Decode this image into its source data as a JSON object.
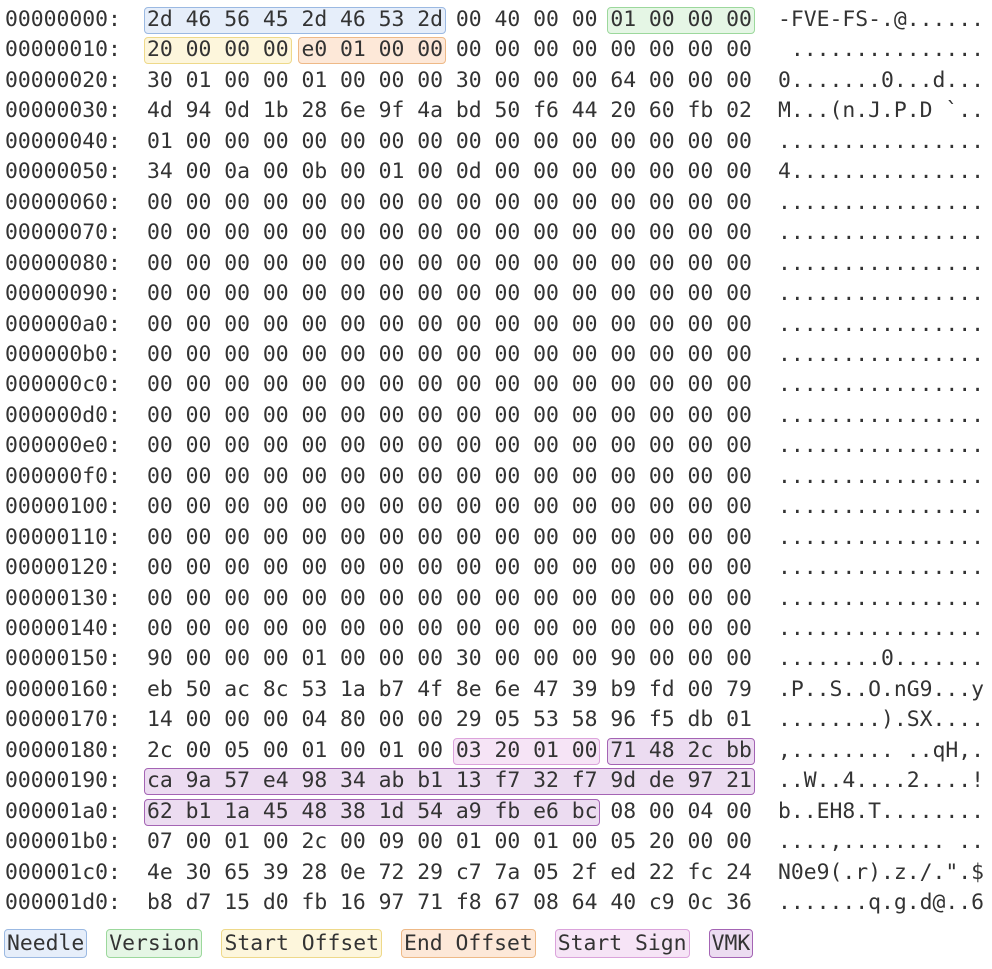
{
  "table": {
    "rows": [
      {
        "offset": "00000000:",
        "bytes": [
          "2d",
          "46",
          "56",
          "45",
          "2d",
          "46",
          "53",
          "2d",
          "00",
          "40",
          "00",
          "00",
          "01",
          "00",
          "00",
          "00"
        ],
        "ascii": "-FVE-FS-.@......"
      },
      {
        "offset": "00000010:",
        "bytes": [
          "20",
          "00",
          "00",
          "00",
          "e0",
          "01",
          "00",
          "00",
          "00",
          "00",
          "00",
          "00",
          "00",
          "00",
          "00",
          "00"
        ],
        "ascii": " ..............."
      },
      {
        "offset": "00000020:",
        "bytes": [
          "30",
          "01",
          "00",
          "00",
          "01",
          "00",
          "00",
          "00",
          "30",
          "00",
          "00",
          "00",
          "64",
          "00",
          "00",
          "00"
        ],
        "ascii": "0.......0...d..."
      },
      {
        "offset": "00000030:",
        "bytes": [
          "4d",
          "94",
          "0d",
          "1b",
          "28",
          "6e",
          "9f",
          "4a",
          "bd",
          "50",
          "f6",
          "44",
          "20",
          "60",
          "fb",
          "02"
        ],
        "ascii": "M...(n.J.P.D `.."
      },
      {
        "offset": "00000040:",
        "bytes": [
          "01",
          "00",
          "00",
          "00",
          "00",
          "00",
          "00",
          "00",
          "00",
          "00",
          "00",
          "00",
          "00",
          "00",
          "00",
          "00"
        ],
        "ascii": "................"
      },
      {
        "offset": "00000050:",
        "bytes": [
          "34",
          "00",
          "0a",
          "00",
          "0b",
          "00",
          "01",
          "00",
          "0d",
          "00",
          "00",
          "00",
          "00",
          "00",
          "00",
          "00"
        ],
        "ascii": "4..............."
      },
      {
        "offset": "00000060:",
        "bytes": [
          "00",
          "00",
          "00",
          "00",
          "00",
          "00",
          "00",
          "00",
          "00",
          "00",
          "00",
          "00",
          "00",
          "00",
          "00",
          "00"
        ],
        "ascii": "................"
      },
      {
        "offset": "00000070:",
        "bytes": [
          "00",
          "00",
          "00",
          "00",
          "00",
          "00",
          "00",
          "00",
          "00",
          "00",
          "00",
          "00",
          "00",
          "00",
          "00",
          "00"
        ],
        "ascii": "................"
      },
      {
        "offset": "00000080:",
        "bytes": [
          "00",
          "00",
          "00",
          "00",
          "00",
          "00",
          "00",
          "00",
          "00",
          "00",
          "00",
          "00",
          "00",
          "00",
          "00",
          "00"
        ],
        "ascii": "................"
      },
      {
        "offset": "00000090:",
        "bytes": [
          "00",
          "00",
          "00",
          "00",
          "00",
          "00",
          "00",
          "00",
          "00",
          "00",
          "00",
          "00",
          "00",
          "00",
          "00",
          "00"
        ],
        "ascii": "................"
      },
      {
        "offset": "000000a0:",
        "bytes": [
          "00",
          "00",
          "00",
          "00",
          "00",
          "00",
          "00",
          "00",
          "00",
          "00",
          "00",
          "00",
          "00",
          "00",
          "00",
          "00"
        ],
        "ascii": "................"
      },
      {
        "offset": "000000b0:",
        "bytes": [
          "00",
          "00",
          "00",
          "00",
          "00",
          "00",
          "00",
          "00",
          "00",
          "00",
          "00",
          "00",
          "00",
          "00",
          "00",
          "00"
        ],
        "ascii": "................"
      },
      {
        "offset": "000000c0:",
        "bytes": [
          "00",
          "00",
          "00",
          "00",
          "00",
          "00",
          "00",
          "00",
          "00",
          "00",
          "00",
          "00",
          "00",
          "00",
          "00",
          "00"
        ],
        "ascii": "................"
      },
      {
        "offset": "000000d0:",
        "bytes": [
          "00",
          "00",
          "00",
          "00",
          "00",
          "00",
          "00",
          "00",
          "00",
          "00",
          "00",
          "00",
          "00",
          "00",
          "00",
          "00"
        ],
        "ascii": "................"
      },
      {
        "offset": "000000e0:",
        "bytes": [
          "00",
          "00",
          "00",
          "00",
          "00",
          "00",
          "00",
          "00",
          "00",
          "00",
          "00",
          "00",
          "00",
          "00",
          "00",
          "00"
        ],
        "ascii": "................"
      },
      {
        "offset": "000000f0:",
        "bytes": [
          "00",
          "00",
          "00",
          "00",
          "00",
          "00",
          "00",
          "00",
          "00",
          "00",
          "00",
          "00",
          "00",
          "00",
          "00",
          "00"
        ],
        "ascii": "................"
      },
      {
        "offset": "00000100:",
        "bytes": [
          "00",
          "00",
          "00",
          "00",
          "00",
          "00",
          "00",
          "00",
          "00",
          "00",
          "00",
          "00",
          "00",
          "00",
          "00",
          "00"
        ],
        "ascii": "................"
      },
      {
        "offset": "00000110:",
        "bytes": [
          "00",
          "00",
          "00",
          "00",
          "00",
          "00",
          "00",
          "00",
          "00",
          "00",
          "00",
          "00",
          "00",
          "00",
          "00",
          "00"
        ],
        "ascii": "................"
      },
      {
        "offset": "00000120:",
        "bytes": [
          "00",
          "00",
          "00",
          "00",
          "00",
          "00",
          "00",
          "00",
          "00",
          "00",
          "00",
          "00",
          "00",
          "00",
          "00",
          "00"
        ],
        "ascii": "................"
      },
      {
        "offset": "00000130:",
        "bytes": [
          "00",
          "00",
          "00",
          "00",
          "00",
          "00",
          "00",
          "00",
          "00",
          "00",
          "00",
          "00",
          "00",
          "00",
          "00",
          "00"
        ],
        "ascii": "................"
      },
      {
        "offset": "00000140:",
        "bytes": [
          "00",
          "00",
          "00",
          "00",
          "00",
          "00",
          "00",
          "00",
          "00",
          "00",
          "00",
          "00",
          "00",
          "00",
          "00",
          "00"
        ],
        "ascii": "................"
      },
      {
        "offset": "00000150:",
        "bytes": [
          "90",
          "00",
          "00",
          "00",
          "01",
          "00",
          "00",
          "00",
          "30",
          "00",
          "00",
          "00",
          "90",
          "00",
          "00",
          "00"
        ],
        "ascii": "........0......."
      },
      {
        "offset": "00000160:",
        "bytes": [
          "eb",
          "50",
          "ac",
          "8c",
          "53",
          "1a",
          "b7",
          "4f",
          "8e",
          "6e",
          "47",
          "39",
          "b9",
          "fd",
          "00",
          "79"
        ],
        "ascii": ".P..S..O.nG9...y"
      },
      {
        "offset": "00000170:",
        "bytes": [
          "14",
          "00",
          "00",
          "00",
          "04",
          "80",
          "00",
          "00",
          "29",
          "05",
          "53",
          "58",
          "96",
          "f5",
          "db",
          "01"
        ],
        "ascii": "........).SX...."
      },
      {
        "offset": "00000180:",
        "bytes": [
          "2c",
          "00",
          "05",
          "00",
          "01",
          "00",
          "01",
          "00",
          "03",
          "20",
          "01",
          "00",
          "71",
          "48",
          "2c",
          "bb"
        ],
        "ascii": ",........ ..qH,."
      },
      {
        "offset": "00000190:",
        "bytes": [
          "ca",
          "9a",
          "57",
          "e4",
          "98",
          "34",
          "ab",
          "b1",
          "13",
          "f7",
          "32",
          "f7",
          "9d",
          "de",
          "97",
          "21"
        ],
        "ascii": "..W..4....2....!"
      },
      {
        "offset": "000001a0:",
        "bytes": [
          "62",
          "b1",
          "1a",
          "45",
          "48",
          "38",
          "1d",
          "54",
          "a9",
          "fb",
          "e6",
          "bc",
          "08",
          "00",
          "04",
          "00"
        ],
        "ascii": "b..EH8.T........"
      },
      {
        "offset": "000001b0:",
        "bytes": [
          "07",
          "00",
          "01",
          "00",
          "2c",
          "00",
          "09",
          "00",
          "01",
          "00",
          "01",
          "00",
          "05",
          "20",
          "00",
          "00"
        ],
        "ascii": "....,........ .."
      },
      {
        "offset": "000001c0:",
        "bytes": [
          "4e",
          "30",
          "65",
          "39",
          "28",
          "0e",
          "72",
          "29",
          "c7",
          "7a",
          "05",
          "2f",
          "ed",
          "22",
          "fc",
          "24"
        ],
        "ascii": "N0e9(.r).z./.\".$"
      },
      {
        "offset": "000001d0:",
        "bytes": [
          "b8",
          "d7",
          "15",
          "d0",
          "fb",
          "16",
          "97",
          "71",
          "f8",
          "67",
          "08",
          "64",
          "40",
          "c9",
          "0c",
          "36"
        ],
        "ascii": ".......q.g.d@..6"
      }
    ]
  },
  "legend": [
    {
      "label": "Needle",
      "color": "#e6eefa",
      "border": "#9bb9e2"
    },
    {
      "label": "Version",
      "color": "#e5f6e5",
      "border": "#9cd89c"
    },
    {
      "label": "Start Offset",
      "color": "#fdf6dc",
      "border": "#eed98a"
    },
    {
      "label": "End Offset",
      "color": "#fde8d8",
      "border": "#eeb987"
    },
    {
      "label": "Start Sign",
      "color": "#f6e4f6",
      "border": "#dba3db"
    },
    {
      "label": "VMK",
      "color": "#ecdcf1",
      "border": "#a464b4"
    }
  ]
}
